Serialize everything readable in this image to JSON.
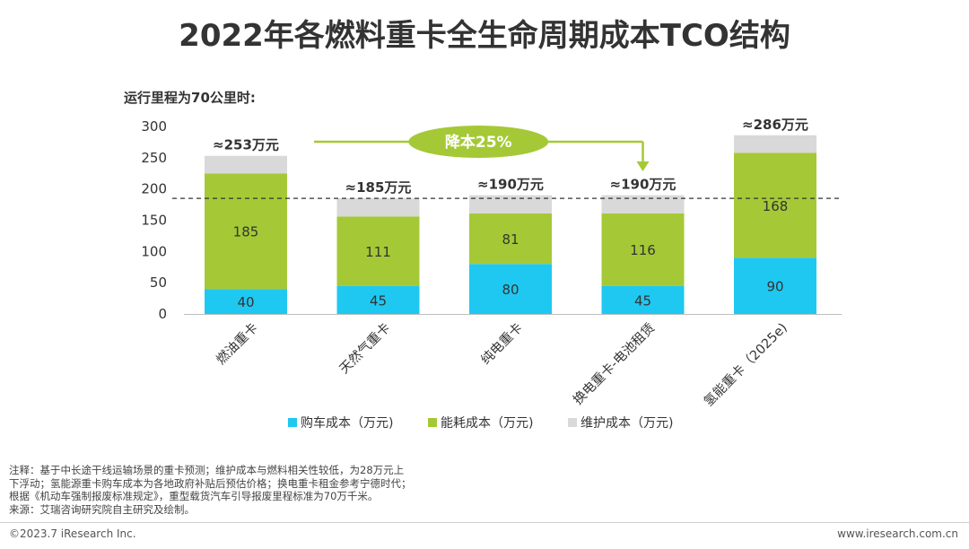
{
  "title": "2022年各燃料重卡全生命周期成本TCO结构",
  "subtitle": "运行里程为70公里时:",
  "chart_data": {
    "type": "bar",
    "stacked": true,
    "categories": [
      "燃油重卡",
      "天然气重卡",
      "纯电重卡",
      "换电重卡-电池租赁",
      "氢能重卡（2025e)"
    ],
    "series": [
      {
        "name": "购车成本（万元)",
        "color": "#1fc8f1",
        "values": [
          40,
          45,
          80,
          45,
          90
        ],
        "labels": [
          "40",
          "45",
          "80",
          "45",
          "90"
        ]
      },
      {
        "name": "能耗成本（万元)",
        "color": "#a5c936",
        "values": [
          185,
          111,
          81,
          116,
          168
        ],
        "labels": [
          "185",
          "111",
          "81",
          "116",
          "168"
        ]
      },
      {
        "name": "维护成本（万元)",
        "color": "#d9d9d9",
        "values": [
          28,
          29,
          29,
          29,
          28
        ]
      }
    ],
    "totals": [
      253,
      185,
      190,
      190,
      286
    ],
    "total_labels": [
      "≈253万元",
      "≈185万元",
      "≈190万元",
      "≈190万元",
      "≈286万元"
    ],
    "ylim": [
      0,
      300
    ],
    "yticks": [
      "0",
      "50",
      "100",
      "150",
      "200",
      "250",
      "300"
    ],
    "reference_line": 185,
    "annotation": "降本25%",
    "legend_position": "bottom",
    "grid": false
  },
  "notes": [
    "注释：基于中长途干线运输场景的重卡预测；维护成本与燃料相关性较低，为28万元上",
    "下浮动；氢能源重卡购车成本为各地政府补贴后预估价格；换电重卡租金参考宁德时代；",
    "根据《机动车强制报废标准规定》，重型载货汽车引导报废里程标准为70万千米。",
    "来源：艾瑞咨询研究院自主研究及绘制。"
  ],
  "footer": {
    "left": "©2023.7 iResearch Inc.",
    "right": "www.iresearch.com.cn"
  }
}
